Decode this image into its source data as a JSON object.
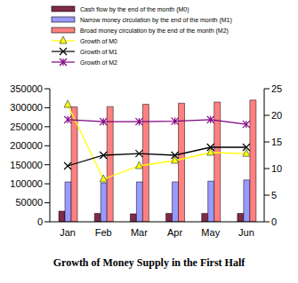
{
  "chart_data": {
    "type": "bar",
    "title": "Growth of Money Supply in the First Half",
    "categories": [
      "Jan",
      "Feb",
      "Mar",
      "Apr",
      "May",
      "Jun"
    ],
    "series": [
      {
        "name": "Cash flow by the end of the month (M0)",
        "type": "bar",
        "color": "#7f2a4a",
        "values": [
          28000,
          22000,
          21000,
          22000,
          22000,
          22000
        ]
      },
      {
        "name": "Narrow money circulation by the end of the month (M1)",
        "type": "bar",
        "color": "#9999ff",
        "values": [
          105000,
          102000,
          105000,
          105000,
          107000,
          110000
        ]
      },
      {
        "name": "Broad money circulation by the end of the month (M2)",
        "type": "bar",
        "color": "#ff8080",
        "values": [
          302000,
          303000,
          309000,
          312000,
          315000,
          320000
        ]
      },
      {
        "name": "Growth of M0",
        "type": "line",
        "axis": "y2",
        "color": "#ffff00",
        "marker": "triangle",
        "values": [
          22,
          8,
          10.5,
          11.5,
          13,
          12.8
        ]
      },
      {
        "name": "Growth of M1",
        "type": "line",
        "axis": "y2",
        "color": "#000000",
        "marker": "x",
        "values": [
          10.5,
          12.5,
          12.8,
          12.5,
          14,
          14
        ]
      },
      {
        "name": "Growth of M2",
        "type": "line",
        "axis": "y2",
        "color": "#800080",
        "marker": "star",
        "values": [
          19.2,
          18.8,
          18.8,
          18.9,
          19.2,
          18.3
        ]
      }
    ],
    "ylim": [
      0,
      350000
    ],
    "yticks": [
      0,
      50000,
      100000,
      150000,
      200000,
      250000,
      300000,
      350000
    ],
    "y2lim": [
      0,
      25
    ],
    "y2ticks": [
      0,
      5,
      10,
      15,
      20,
      25
    ],
    "legend": "top"
  }
}
